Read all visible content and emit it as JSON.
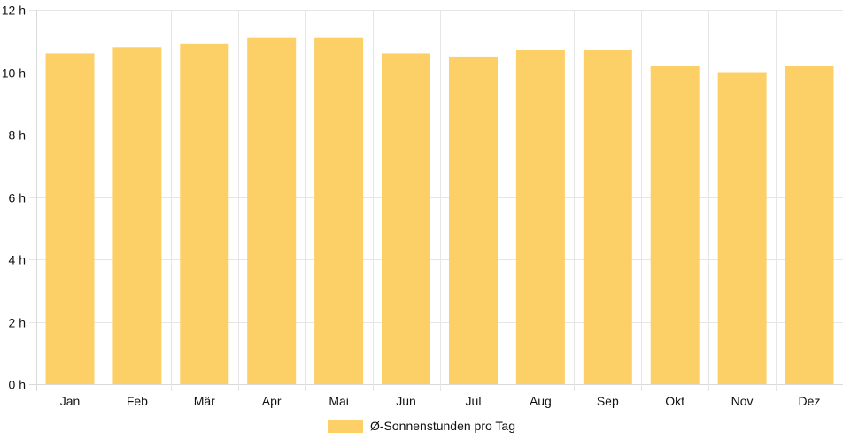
{
  "chart_data": {
    "type": "bar",
    "categories": [
      "Jan",
      "Feb",
      "Mär",
      "Apr",
      "Mai",
      "Jun",
      "Jul",
      "Aug",
      "Sep",
      "Okt",
      "Nov",
      "Dez"
    ],
    "series": [
      {
        "name": "Ø-Sonnenstunden pro Tag",
        "values": [
          10.6,
          10.8,
          10.9,
          11.1,
          11.1,
          10.6,
          10.5,
          10.7,
          10.7,
          10.2,
          10.0,
          10.2
        ]
      }
    ],
    "ylim": [
      0,
      12
    ],
    "yticks": [
      0,
      2,
      4,
      6,
      8,
      10,
      12
    ],
    "ytick_labels": [
      "0 h",
      "2 h",
      "4 h",
      "6 h",
      "8 h",
      "10 h",
      "12 h"
    ],
    "grid": true,
    "legend_position": "bottom",
    "colors": {
      "bar": "#fdd067",
      "grid": "#e6e6e6",
      "axis": "#d9d9d9",
      "text": "#111111"
    }
  }
}
